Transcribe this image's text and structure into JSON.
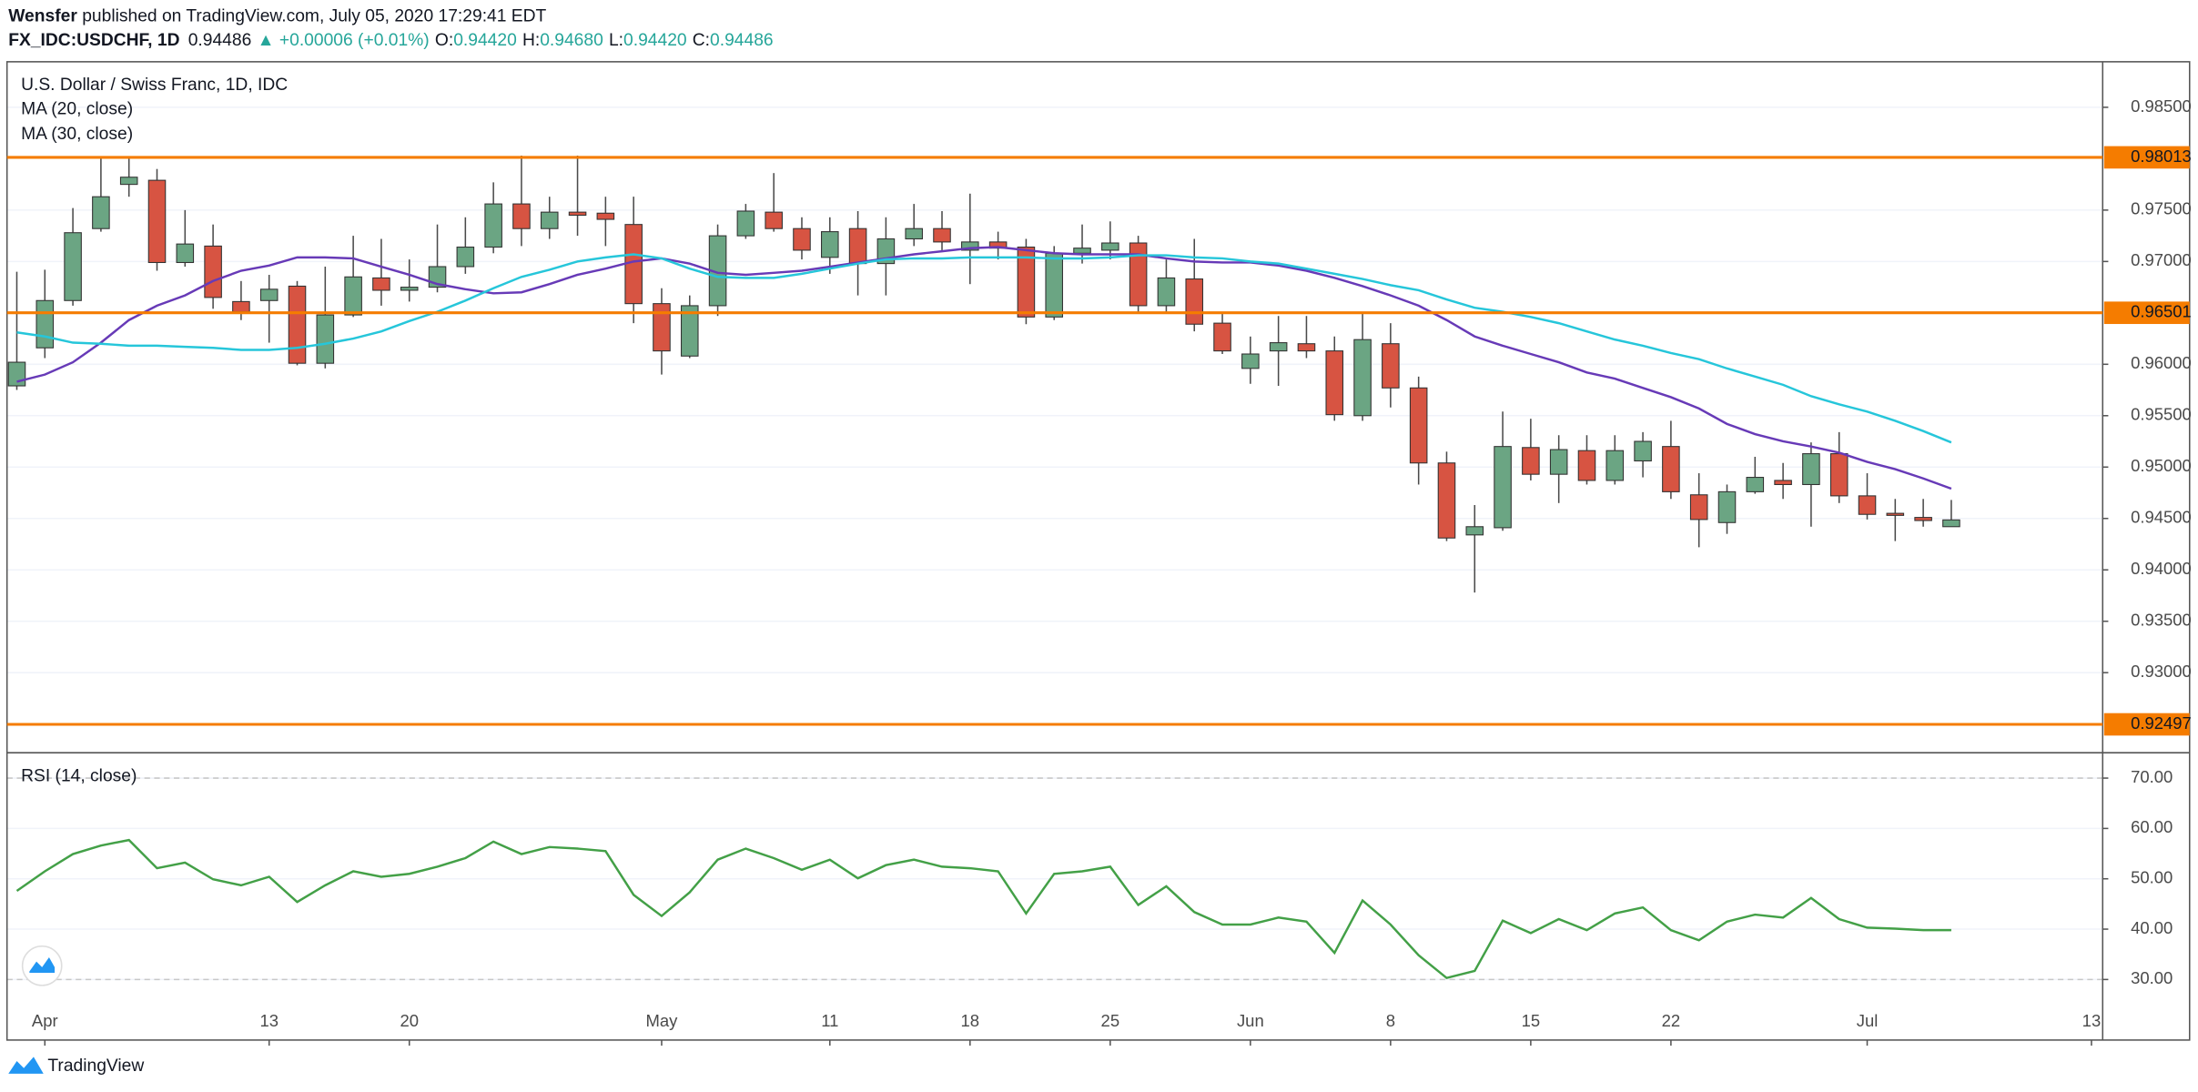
{
  "header": {
    "author": "Wensfer",
    "published": "published on TradingView.com, July 05, 2020 17:29:41 EDT",
    "symbol": "FX_IDC:USDCHF, 1D",
    "last": "0.94486",
    "change": "▲ +0.00006 (+0.01%)",
    "ohlc": [
      {
        "label": "O:",
        "value": "0.94420"
      },
      {
        "label": "H:",
        "value": "0.94680"
      },
      {
        "label": "L:",
        "value": "0.94420"
      },
      {
        "label": "C:",
        "value": "0.94486"
      }
    ]
  },
  "chart_data": [
    {
      "type": "candlestick",
      "title": "U.S. Dollar / Swiss Franc, 1D, IDC",
      "up_color": "#6ba583",
      "down_color": "#d75442",
      "grid": true,
      "open": [
        0.9579,
        0.9616,
        0.9662,
        0.9732,
        0.9775,
        0.9779,
        0.9699,
        0.9715,
        0.9661,
        0.9662,
        0.9676,
        0.9601,
        0.9648,
        0.9684,
        0.9672,
        0.9675,
        0.9695,
        0.9714,
        0.9756,
        0.9732,
        0.9748,
        0.9747,
        0.9736,
        0.9659,
        0.9608,
        0.9657,
        0.9725,
        0.9748,
        0.9732,
        0.9704,
        0.9732,
        0.9698,
        0.9722,
        0.9732,
        0.9711,
        0.9719,
        0.9714,
        0.9646,
        0.9708,
        0.9711,
        0.9718,
        0.9657,
        0.9683,
        0.964,
        0.9596,
        0.9613,
        0.962,
        0.9613,
        0.955,
        0.962,
        0.9577,
        0.9504,
        0.9434,
        0.9441,
        0.9519,
        0.9493,
        0.9516,
        0.9487,
        0.9506,
        0.952,
        0.9473,
        0.9446,
        0.9476,
        0.9487,
        0.9483,
        0.9513,
        0.9472,
        0.9455,
        0.9451,
        0.9442
      ],
      "high": [
        0.969,
        0.9692,
        0.9752,
        0.98,
        0.98,
        0.979,
        0.975,
        0.9736,
        0.9681,
        0.9687,
        0.9681,
        0.9695,
        0.9725,
        0.9722,
        0.9702,
        0.9736,
        0.9743,
        0.9777,
        0.9803,
        0.9763,
        0.9803,
        0.9763,
        0.9763,
        0.9674,
        0.9667,
        0.9736,
        0.9756,
        0.9786,
        0.9743,
        0.9743,
        0.9749,
        0.9743,
        0.9756,
        0.9749,
        0.9766,
        0.9729,
        0.9722,
        0.9715,
        0.9736,
        0.9739,
        0.9725,
        0.9702,
        0.9722,
        0.9651,
        0.9627,
        0.9647,
        0.9647,
        0.9627,
        0.9651,
        0.964,
        0.9588,
        0.9515,
        0.9463,
        0.9554,
        0.9547,
        0.9531,
        0.9531,
        0.9531,
        0.9534,
        0.9545,
        0.9494,
        0.9483,
        0.951,
        0.9504,
        0.9524,
        0.9534,
        0.9494,
        0.9469,
        0.9469,
        0.9468
      ],
      "low": [
        0.9575,
        0.9606,
        0.9657,
        0.9729,
        0.9763,
        0.9691,
        0.9695,
        0.9654,
        0.9643,
        0.9621,
        0.9599,
        0.9596,
        0.9646,
        0.9657,
        0.9661,
        0.967,
        0.9688,
        0.9708,
        0.9715,
        0.9722,
        0.9725,
        0.9715,
        0.964,
        0.959,
        0.9606,
        0.9647,
        0.9722,
        0.9729,
        0.9702,
        0.9688,
        0.9667,
        0.9667,
        0.9715,
        0.9711,
        0.9678,
        0.9702,
        0.9639,
        0.9643,
        0.9698,
        0.9702,
        0.9651,
        0.9651,
        0.9632,
        0.961,
        0.9581,
        0.9579,
        0.9606,
        0.9545,
        0.9545,
        0.9558,
        0.9483,
        0.9428,
        0.9378,
        0.9438,
        0.9487,
        0.9465,
        0.9483,
        0.9483,
        0.949,
        0.9469,
        0.9422,
        0.9435,
        0.9474,
        0.9469,
        0.9442,
        0.9465,
        0.9449,
        0.9428,
        0.9442,
        0.9442
      ],
      "close": [
        0.9602,
        0.9662,
        0.9728,
        0.9763,
        0.9782,
        0.9699,
        0.9717,
        0.9665,
        0.9651,
        0.9673,
        0.9601,
        0.9648,
        0.9685,
        0.9672,
        0.9675,
        0.9695,
        0.9714,
        0.9756,
        0.9732,
        0.9748,
        0.9745,
        0.9741,
        0.9659,
        0.9613,
        0.9657,
        0.9725,
        0.9749,
        0.9732,
        0.9711,
        0.9729,
        0.9698,
        0.9722,
        0.9732,
        0.9719,
        0.9719,
        0.9713,
        0.9646,
        0.9708,
        0.9713,
        0.9718,
        0.9657,
        0.9684,
        0.9639,
        0.9613,
        0.961,
        0.9621,
        0.9613,
        0.9551,
        0.9624,
        0.9577,
        0.9504,
        0.9431,
        0.9442,
        0.952,
        0.9493,
        0.9517,
        0.9487,
        0.9516,
        0.9525,
        0.9476,
        0.9449,
        0.9476,
        0.949,
        0.9483,
        0.9513,
        0.9472,
        0.9454,
        0.9453,
        0.9448,
        0.94486
      ],
      "series": [
        {
          "name": "MA (20, close)",
          "color": "#673ab7",
          "values": [
            0.9583,
            0.959,
            0.9602,
            0.9621,
            0.9643,
            0.9657,
            0.9667,
            0.9681,
            0.9691,
            0.9696,
            0.9704,
            0.9704,
            0.9703,
            0.9695,
            0.9687,
            0.9678,
            0.9673,
            0.9669,
            0.967,
            0.9678,
            0.9687,
            0.9693,
            0.97,
            0.9703,
            0.9698,
            0.9689,
            0.9687,
            0.9689,
            0.9691,
            0.9695,
            0.9699,
            0.9703,
            0.9707,
            0.971,
            0.9713,
            0.9714,
            0.9711,
            0.9708,
            0.9707,
            0.9707,
            0.9707,
            0.9703,
            0.97,
            0.9699,
            0.9699,
            0.9696,
            0.9691,
            0.9684,
            0.9676,
            0.9667,
            0.9657,
            0.9643,
            0.9627,
            0.9618,
            0.961,
            0.9602,
            0.9592,
            0.9586,
            0.9577,
            0.9568,
            0.9557,
            0.9542,
            0.9532,
            0.9525,
            0.952,
            0.9514,
            0.9505,
            0.9498,
            0.9489,
            0.9479
          ]
        },
        {
          "name": "MA (30, close)",
          "color": "#26c6da",
          "values": [
            0.9631,
            0.9627,
            0.9621,
            0.962,
            0.9618,
            0.9618,
            0.9617,
            0.9616,
            0.9614,
            0.9614,
            0.9616,
            0.962,
            0.9625,
            0.9632,
            0.9642,
            0.9651,
            0.9662,
            0.9674,
            0.9685,
            0.9692,
            0.97,
            0.9704,
            0.9707,
            0.9703,
            0.9693,
            0.9685,
            0.9684,
            0.9684,
            0.9688,
            0.9693,
            0.9698,
            0.9702,
            0.9703,
            0.9703,
            0.9704,
            0.9704,
            0.9704,
            0.9703,
            0.9703,
            0.9704,
            0.9706,
            0.9706,
            0.9704,
            0.9703,
            0.97,
            0.9698,
            0.9693,
            0.9688,
            0.9683,
            0.9677,
            0.9672,
            0.9663,
            0.9655,
            0.9651,
            0.9646,
            0.964,
            0.9632,
            0.9624,
            0.9618,
            0.9611,
            0.9605,
            0.9596,
            0.9588,
            0.958,
            0.9569,
            0.9561,
            0.9554,
            0.9545,
            0.9535,
            0.9524
          ]
        }
      ],
      "hlines": {
        "color": "#f57c00",
        "lines": [
          {
            "value": 0.98013,
            "label": "0.98013"
          },
          {
            "value": 0.96501,
            "label": "0.96501"
          },
          {
            "value": 0.92497,
            "label": "0.92497"
          }
        ]
      },
      "xlim": [
        -0.35,
        74.4
      ],
      "xticks": [
        {
          "value": 1,
          "label": "Apr"
        },
        {
          "value": 9,
          "label": "13"
        },
        {
          "value": 14,
          "label": "20"
        },
        {
          "value": 23,
          "label": "May"
        },
        {
          "value": 29,
          "label": "11"
        },
        {
          "value": 34,
          "label": "18"
        },
        {
          "value": 39,
          "label": "25"
        },
        {
          "value": 44,
          "label": "Jun"
        },
        {
          "value": 49,
          "label": "8"
        },
        {
          "value": 54,
          "label": "15"
        },
        {
          "value": 59,
          "label": "22"
        },
        {
          "value": 66,
          "label": "Jul"
        },
        {
          "value": 74,
          "label": "13"
        }
      ],
      "ylim": [
        0.92221,
        0.98943
      ],
      "yticks": [
        {
          "value": 0.985,
          "label": "0.98500"
        },
        {
          "value": 0.975,
          "label": "0.97500"
        },
        {
          "value": 0.97,
          "label": "0.97000"
        },
        {
          "value": 0.96,
          "label": "0.96000"
        },
        {
          "value": 0.955,
          "label": "0.95500"
        },
        {
          "value": 0.95,
          "label": "0.95000"
        },
        {
          "value": 0.945,
          "label": "0.94500"
        },
        {
          "value": 0.94,
          "label": "0.94000"
        },
        {
          "value": 0.935,
          "label": "0.93500"
        },
        {
          "value": 0.93,
          "label": "0.93000"
        }
      ]
    },
    {
      "type": "line",
      "title": "RSI (14, close)",
      "color": "#43a047",
      "grid": true,
      "values": [
        47.6,
        51.5,
        54.9,
        56.6,
        57.7,
        52.1,
        53.2,
        49.9,
        48.7,
        50.4,
        45.4,
        48.7,
        51.5,
        50.4,
        51.0,
        52.4,
        54.1,
        57.4,
        54.9,
        56.3,
        56.0,
        55.5,
        46.8,
        42.6,
        47.3,
        53.8,
        56.0,
        54.1,
        51.8,
        53.8,
        50.1,
        52.7,
        53.8,
        52.4,
        52.1,
        51.5,
        43.1,
        51.0,
        51.5,
        52.4,
        44.8,
        48.5,
        43.4,
        40.9,
        40.9,
        42.3,
        41.5,
        35.3,
        45.7,
        40.9,
        34.8,
        30.3,
        31.7,
        41.7,
        39.2,
        42.0,
        39.8,
        43.1,
        44.3,
        39.8,
        37.8,
        41.5,
        42.9,
        42.3,
        46.2,
        42.0,
        40.3,
        40.1,
        39.8,
        39.8
      ],
      "levels": [
        70,
        30
      ],
      "ylim": [
        18.25,
        74.76
      ],
      "yticks": [
        {
          "value": 70,
          "label": "70.00"
        },
        {
          "value": 60,
          "label": "60.00"
        },
        {
          "value": 50,
          "label": "50.00"
        },
        {
          "value": 40,
          "label": "40.00"
        },
        {
          "value": 30,
          "label": "30.00"
        }
      ]
    }
  ],
  "footer": {
    "brand": "TradingView"
  }
}
